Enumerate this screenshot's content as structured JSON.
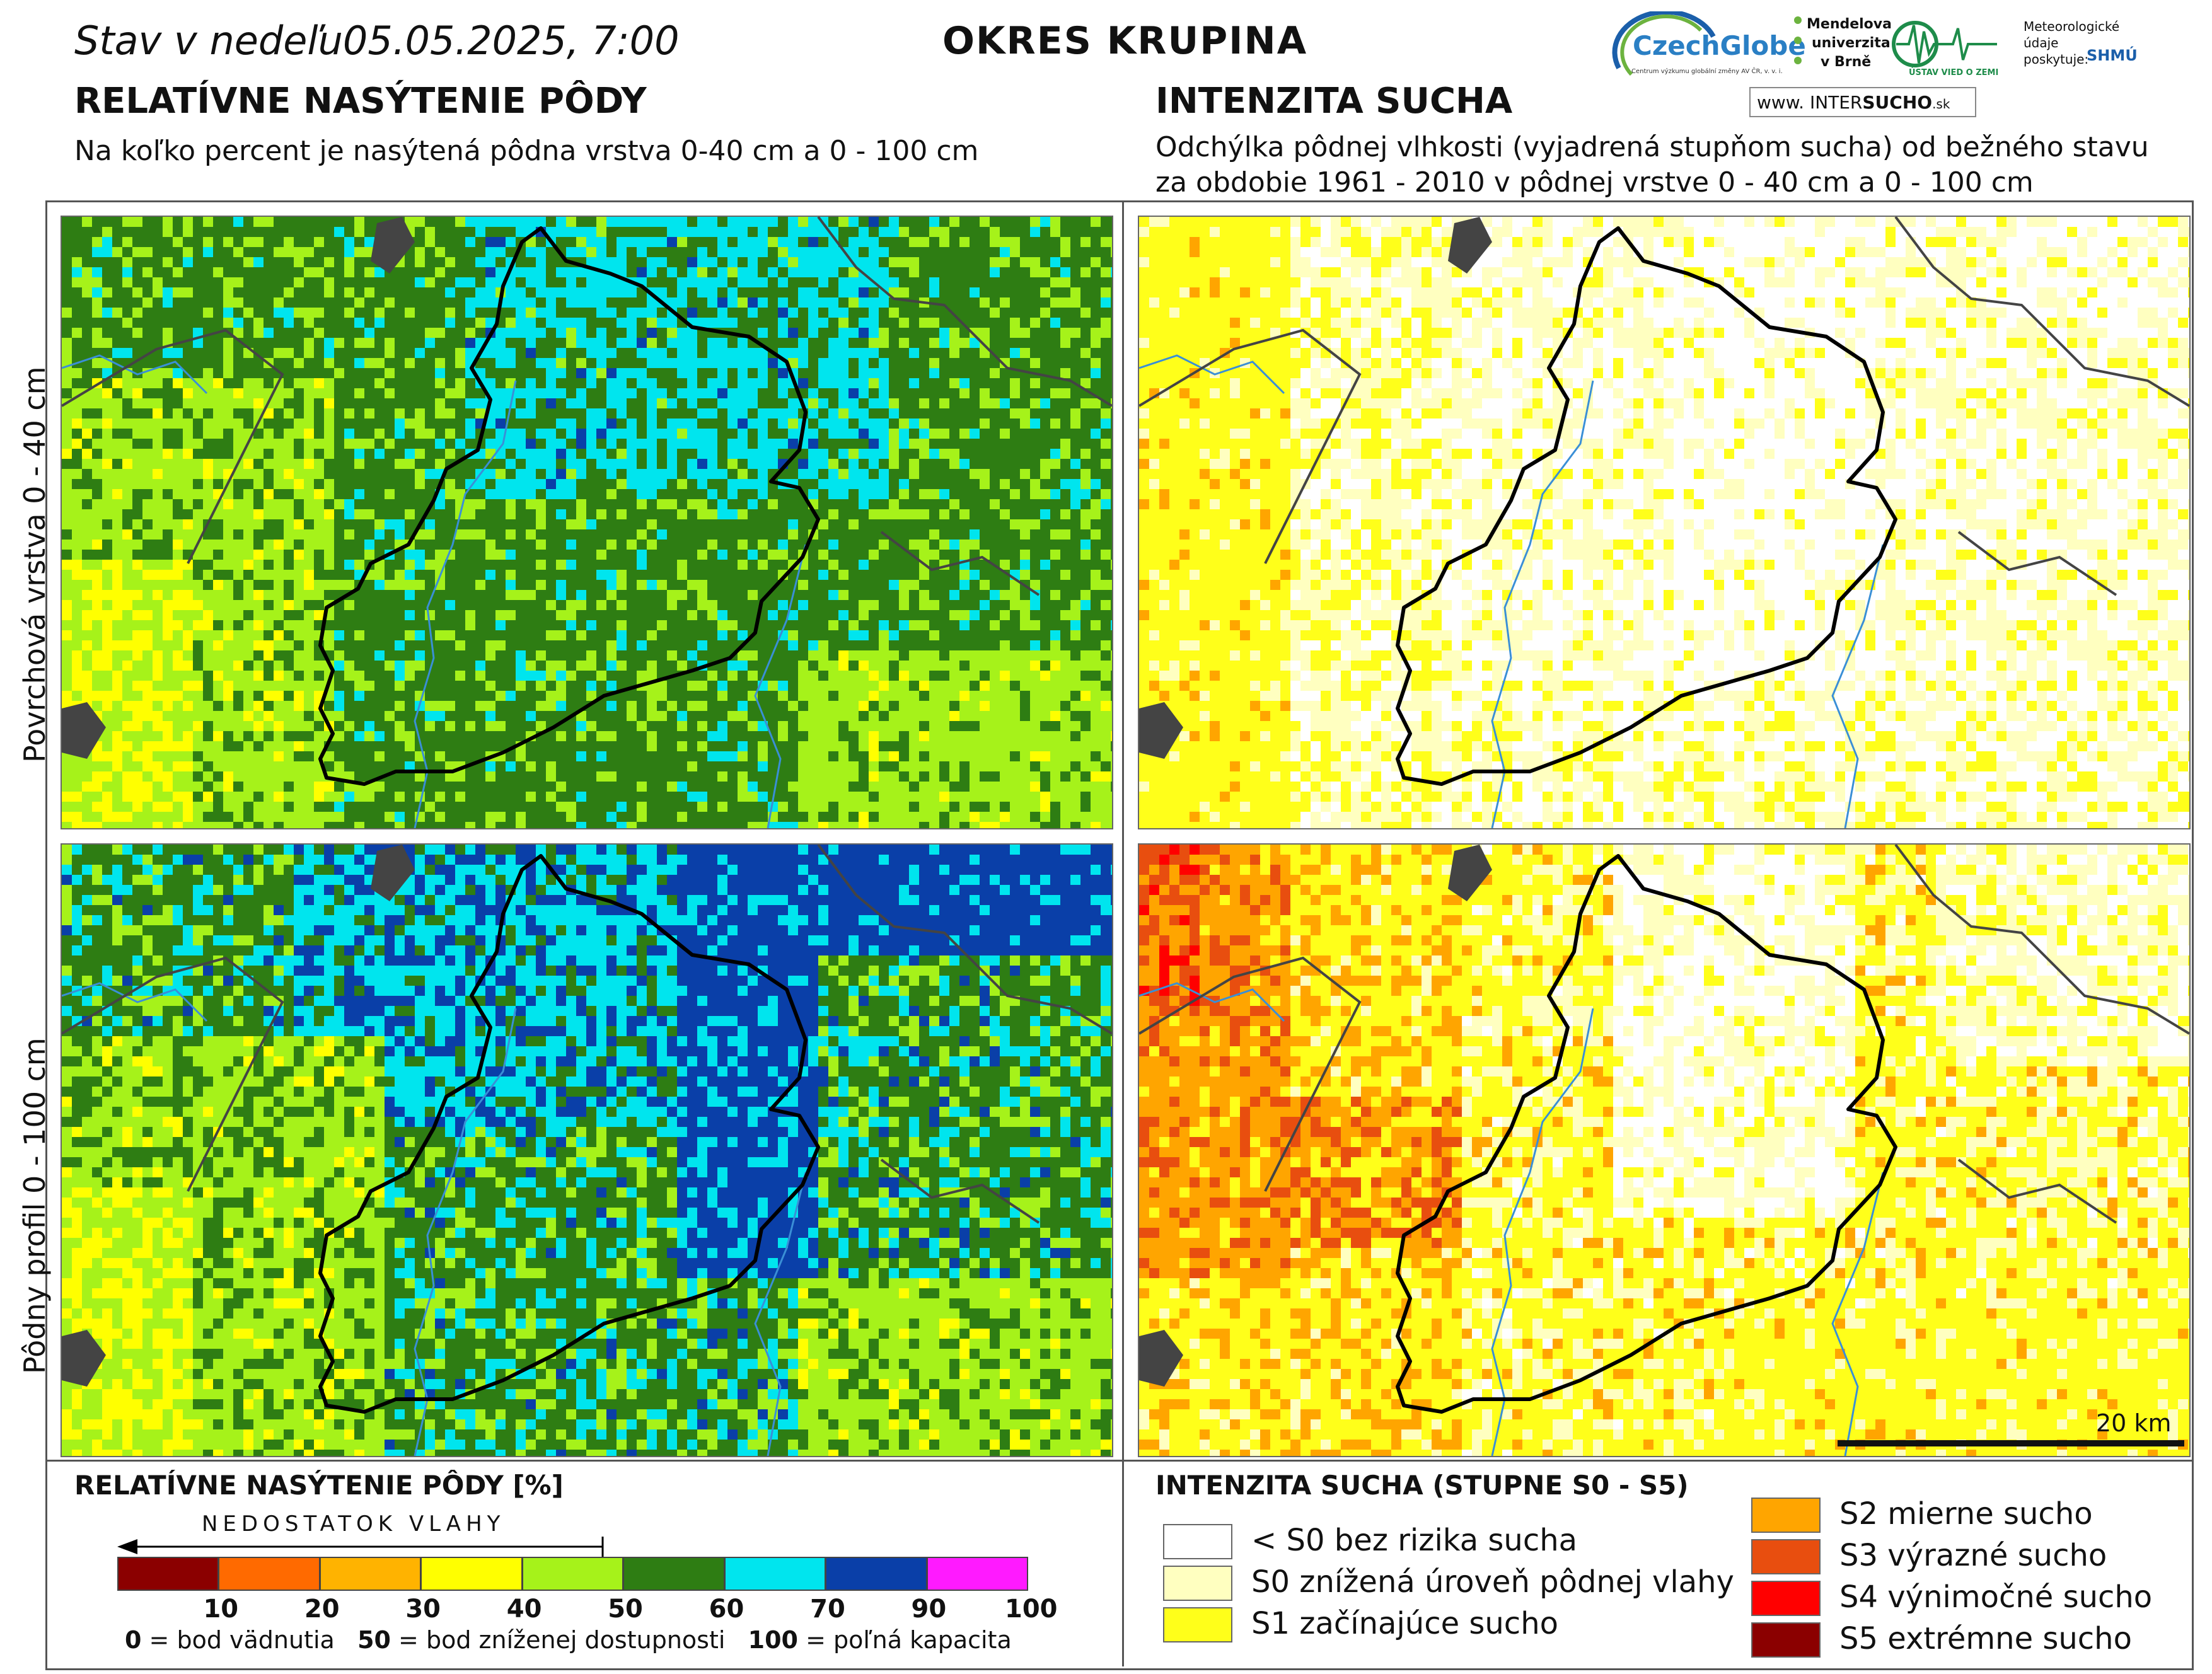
{
  "header": {
    "date_prefix": "Stav v nedeľu",
    "date_value": "05.05.2025, 7:00",
    "district": "OKRES  KRUPINA"
  },
  "left_section": {
    "title": "RELATÍVNE NASÝTENIE PÔDY",
    "subtitle": "Na koľko percent je nasýtená pôdna vrstva 0-40 cm a 0 - 100 cm"
  },
  "right_section": {
    "title": "INTENZITA SUCHA",
    "subtitle_line1": "Odchýlka pôdnej vlhkosti (vyjadrená stupňom sucha) od bežného stavu",
    "subtitle_line2": "za obdobie 1961 - 2010 v pôdnej vrstve 0 - 40 cm a 0 - 100 cm"
  },
  "row_labels": {
    "top": "Povrchová vrstva 0 - 40 cm",
    "bottom": "Pôdny profil 0 - 100 cm"
  },
  "logos": {
    "czechglobe": "CzechGlobe",
    "czechglobe_sub": "Centrum výzkumu globální změny AV ČR, v. v. i.",
    "mendel_1": "Mendelova",
    "mendel_2": "univerzita",
    "mendel_3": "v Brně",
    "uvz": "ÚSTAV VIED O ZEMI",
    "meteo_1": "Meteorologické",
    "meteo_2": "údaje",
    "meteo_3": "poskytuje:",
    "shmu": "SHMÚ",
    "www_prefix": "www.",
    "www_inter": "INTER",
    "www_sucho": "SUCHO",
    "www_suffix": ".sk"
  },
  "saturation_legend": {
    "title": "RELATÍVNE NASÝTENIE PÔDY [%]",
    "arrow_label": "NEDOSTATOK VLAHY",
    "colors": [
      "#8b0000",
      "#ff6a00",
      "#ffb300",
      "#ffff00",
      "#a6f21a",
      "#2e7d13",
      "#00e5ee",
      "#0a3fa8",
      "#ff1aff"
    ],
    "ticks": [
      "10",
      "20",
      "30",
      "40",
      "50",
      "60",
      "70",
      "90",
      "100"
    ],
    "note_0_num": "0",
    "note_0_text": " = bod vädnutia",
    "note_50_num": "50",
    "note_50_text": " = bod zníženej dostupnosti",
    "note_100_num": "100",
    "note_100_text": " = poľná kapacita"
  },
  "drought_legend": {
    "title": "INTENZITA SUCHA (STUPNE S0 - S5)",
    "items": [
      {
        "color": "#ffffff",
        "label": "< S0 bez rizika sucha"
      },
      {
        "color": "#ffffc0",
        "label": "S0 znížená úroveň pôdnej vlahy"
      },
      {
        "color": "#ffff1a",
        "label": "S1 začínajúce sucho"
      },
      {
        "color": "#ffa500",
        "label": "S2 mierne sucho"
      },
      {
        "color": "#e84e0f",
        "label": "S3 výrazné sucho"
      },
      {
        "color": "#ff0000",
        "label": "S4 výnimočné sucho"
      },
      {
        "color": "#8b0000",
        "label": "S5 extrémne sucho"
      }
    ]
  },
  "scale_bar": {
    "label": "20 km"
  }
}
